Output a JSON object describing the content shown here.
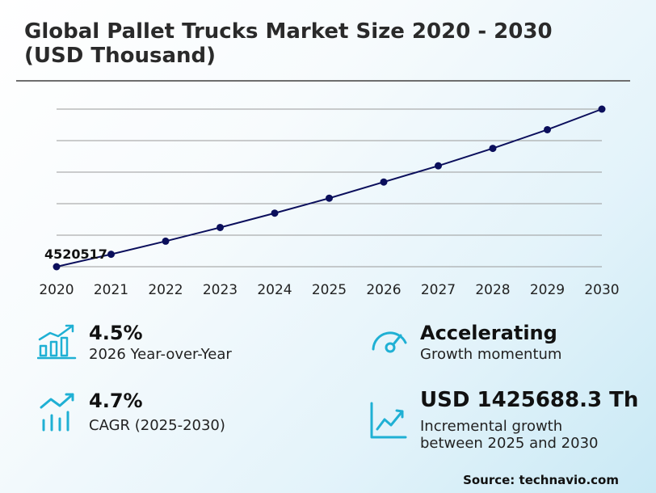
{
  "title_line1": "Global Pallet Trucks Market Size 2020 - 2030",
  "title_line2": "(USD Thousand)",
  "chart_data": {
    "type": "line",
    "categories": [
      "2020",
      "2021",
      "2022",
      "2023",
      "2024",
      "2025",
      "2026",
      "2027",
      "2028",
      "2029",
      "2030"
    ],
    "values": [
      4520517,
      4720000,
      4930000,
      5150000,
      5380000,
      5620000,
      5880000,
      6140000,
      6420000,
      6720000,
      7050000
    ],
    "first_value_label": "4520517",
    "ylim": [
      4520517,
      7050000
    ],
    "grid": true,
    "line_color": "#0b0f5c",
    "point_color": "#0b0f5c"
  },
  "kpis": [
    {
      "value": "4.5%",
      "desc": "2026 Year-over-Year",
      "icon": "bar-chart-up-icon"
    },
    {
      "value": "Accelerating",
      "desc": "Growth momentum",
      "icon": "speedometer-icon"
    },
    {
      "value": "4.7%",
      "desc": "CAGR (2025-2030)",
      "icon": "growth-bars-icon"
    },
    {
      "value": "USD 1425688.3 Th",
      "desc_line1": "Incremental growth",
      "desc_line2": "between 2025 and 2030",
      "icon": "trend-chart-icon"
    }
  ],
  "accent_color": "#1fb0d4",
  "source": "Source: technavio.com"
}
